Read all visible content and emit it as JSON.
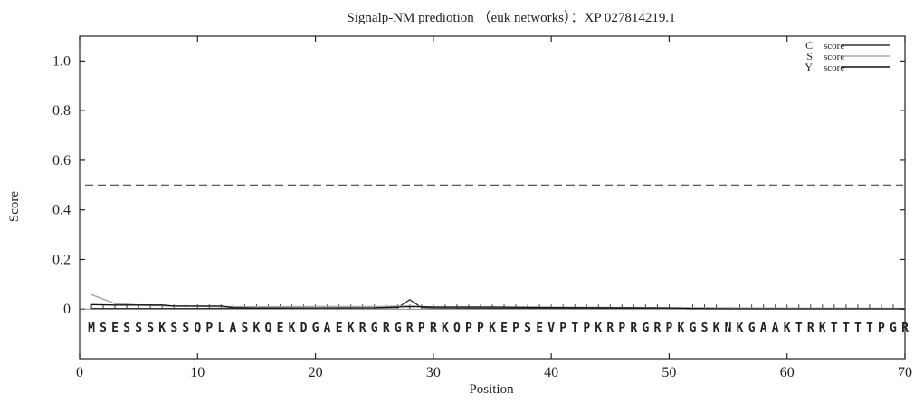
{
  "chart_data": {
    "type": "line",
    "title": "Signalp-NM prediotion （euk networks）：XP 027814219.1",
    "xlabel": "Position",
    "ylabel": "Score",
    "xlim": [
      0,
      70
    ],
    "ylim": [
      -0.2,
      1.1
    ],
    "x_ticks": [
      0,
      10,
      20,
      30,
      40,
      50,
      60,
      70
    ],
    "x_tick_labels": [
      "0",
      "10",
      "20",
      "30",
      "40",
      "50",
      "60",
      "70"
    ],
    "y_ticks": [
      0,
      0.2,
      0.4,
      0.6,
      0.8,
      1.0
    ],
    "y_tick_labels": [
      "0",
      "0.2",
      "0.4",
      "0.6",
      "0.8",
      "1.0"
    ],
    "threshold": 0.5,
    "legend_position": "top-right",
    "legend": [
      {
        "letter": "C",
        "label": "score"
      },
      {
        "letter": "S",
        "label": "score"
      },
      {
        "letter": "Y",
        "label": "score"
      }
    ],
    "sequence": "MSESSSKSSQPLASKQEKDGAEKRGRGRPRKQPPKEPSEVPTPKRPRGRPKGSKNKGAAKTRKTTTTPGR",
    "series": [
      {
        "name": "C",
        "color": "#333333",
        "x": [
          1,
          5,
          10,
          15,
          20,
          25,
          27,
          28,
          29,
          30,
          35,
          40,
          45,
          50,
          55,
          60,
          65,
          70
        ],
        "values": [
          0.002,
          0.002,
          0.002,
          0.003,
          0.004,
          0.004,
          0.006,
          0.038,
          0.006,
          0.004,
          0.003,
          0.003,
          0.003,
          0.003,
          0.002,
          0.002,
          0.002,
          0.002
        ]
      },
      {
        "name": "S",
        "color": "#aaaaaa",
        "x": [
          1,
          2,
          3,
          5,
          8,
          12,
          15,
          20,
          25,
          28,
          30,
          35,
          40,
          45,
          50,
          55,
          60,
          65,
          70
        ],
        "values": [
          0.058,
          0.04,
          0.022,
          0.016,
          0.012,
          0.01,
          0.009,
          0.01,
          0.01,
          0.012,
          0.008,
          0.008,
          0.007,
          0.006,
          0.005,
          0.004,
          0.003,
          0.003,
          0.002
        ]
      },
      {
        "name": "Y",
        "color": "#111111",
        "x": [
          1,
          3,
          7,
          8,
          12,
          13,
          15,
          20,
          25,
          28,
          30,
          35,
          40,
          45,
          50,
          52,
          55,
          60,
          65,
          70
        ],
        "values": [
          0.018,
          0.016,
          0.016,
          0.012,
          0.012,
          0.006,
          0.004,
          0.004,
          0.005,
          0.01,
          0.008,
          0.008,
          0.006,
          0.005,
          0.004,
          0.002,
          0.001,
          0.001,
          0.001,
          0.001
        ]
      }
    ]
  }
}
